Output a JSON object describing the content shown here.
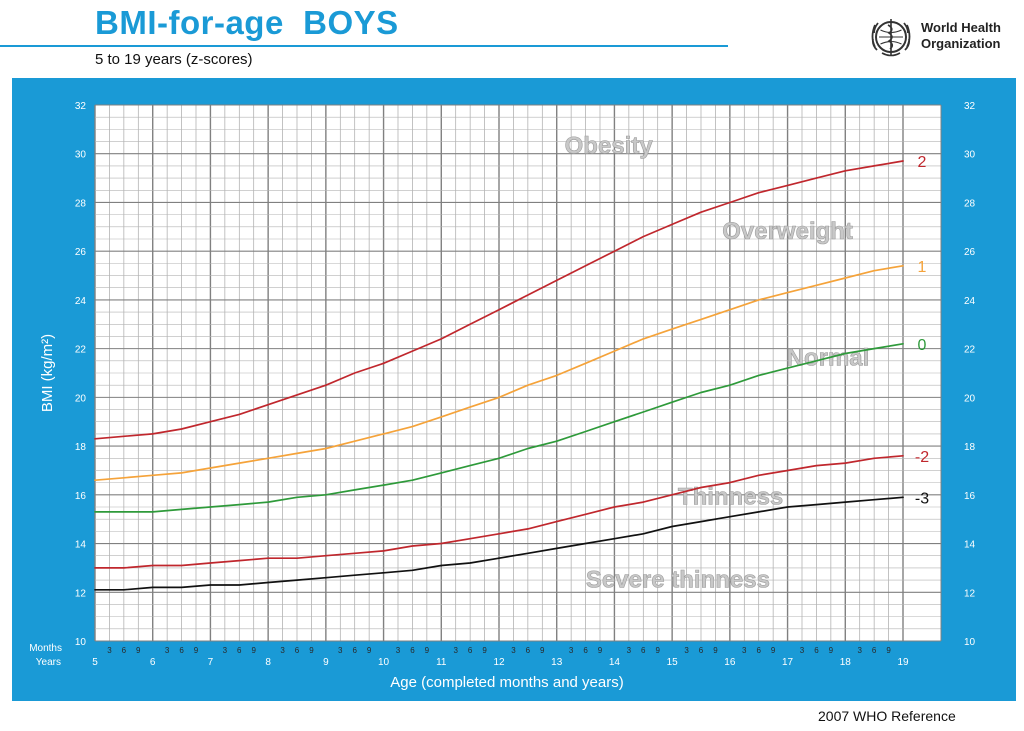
{
  "header": {
    "title": "BMI-for-age  BOYS",
    "subtitle": "5 to 19 years (z-scores)"
  },
  "organization": {
    "line1": "World Health",
    "line2": "Organization",
    "logo_icon": "who-emblem-icon"
  },
  "footer": {
    "reference": "2007  WHO Reference"
  },
  "colors": {
    "brand_blue": "#1a9ad6",
    "z2": "#c0272d",
    "z1": "#f5a33a",
    "z0": "#2e9a3a",
    "zm2": "#c0272d",
    "zm3": "#111111"
  },
  "chart_data": {
    "type": "line",
    "title": "BMI-for-age  BOYS",
    "subtitle": "5 to 19 years (z-scores)",
    "xlabel": "Age (completed months and years)",
    "ylabel": "BMI (kg/m²)",
    "xlim": [
      5,
      19
    ],
    "ylim": [
      10,
      32
    ],
    "x_ticks": [
      5,
      6,
      7,
      8,
      9,
      10,
      11,
      12,
      13,
      14,
      15,
      16,
      17,
      18,
      19
    ],
    "y_ticks": [
      10,
      12,
      14,
      16,
      18,
      20,
      22,
      24,
      26,
      28,
      30,
      32
    ],
    "month_ticks": [
      "3",
      "6",
      "9"
    ],
    "row_labels": {
      "months": "Months",
      "years": "Years"
    },
    "grid": true,
    "zones": [
      "Obesity",
      "Overweight",
      "Normal",
      "Thinness",
      "Severe thinness"
    ],
    "x": [
      5,
      5.5,
      6,
      6.5,
      7,
      7.5,
      8,
      8.5,
      9,
      9.5,
      10,
      10.5,
      11,
      11.5,
      12,
      12.5,
      13,
      13.5,
      14,
      14.5,
      15,
      15.5,
      16,
      16.5,
      17,
      17.5,
      18,
      18.5,
      19
    ],
    "series": [
      {
        "name": "2",
        "color": "#c0272d",
        "values": [
          18.3,
          18.4,
          18.5,
          18.7,
          19.0,
          19.3,
          19.7,
          20.1,
          20.5,
          21.0,
          21.4,
          21.9,
          22.4,
          23.0,
          23.6,
          24.2,
          24.8,
          25.4,
          26.0,
          26.6,
          27.1,
          27.6,
          28.0,
          28.4,
          28.7,
          29.0,
          29.3,
          29.5,
          29.7
        ]
      },
      {
        "name": "1",
        "color": "#f5a33a",
        "values": [
          16.6,
          16.7,
          16.8,
          16.9,
          17.1,
          17.3,
          17.5,
          17.7,
          17.9,
          18.2,
          18.5,
          18.8,
          19.2,
          19.6,
          20.0,
          20.5,
          20.9,
          21.4,
          21.9,
          22.4,
          22.8,
          23.2,
          23.6,
          24.0,
          24.3,
          24.6,
          24.9,
          25.2,
          25.4
        ]
      },
      {
        "name": "0",
        "color": "#2e9a3a",
        "values": [
          15.3,
          15.3,
          15.3,
          15.4,
          15.5,
          15.6,
          15.7,
          15.9,
          16.0,
          16.2,
          16.4,
          16.6,
          16.9,
          17.2,
          17.5,
          17.9,
          18.2,
          18.6,
          19.0,
          19.4,
          19.8,
          20.2,
          20.5,
          20.9,
          21.2,
          21.5,
          21.8,
          22.0,
          22.2
        ]
      },
      {
        "name": "-2",
        "color": "#c0272d",
        "values": [
          13.0,
          13.0,
          13.1,
          13.1,
          13.2,
          13.3,
          13.4,
          13.4,
          13.5,
          13.6,
          13.7,
          13.9,
          14.0,
          14.2,
          14.4,
          14.6,
          14.9,
          15.2,
          15.5,
          15.7,
          16.0,
          16.3,
          16.5,
          16.8,
          17.0,
          17.2,
          17.3,
          17.5,
          17.6
        ]
      },
      {
        "name": "-3",
        "color": "#111111",
        "values": [
          12.1,
          12.1,
          12.2,
          12.2,
          12.3,
          12.3,
          12.4,
          12.5,
          12.6,
          12.7,
          12.8,
          12.9,
          13.1,
          13.2,
          13.4,
          13.6,
          13.8,
          14.0,
          14.2,
          14.4,
          14.7,
          14.9,
          15.1,
          15.3,
          15.5,
          15.6,
          15.7,
          15.8,
          15.9
        ]
      }
    ]
  }
}
